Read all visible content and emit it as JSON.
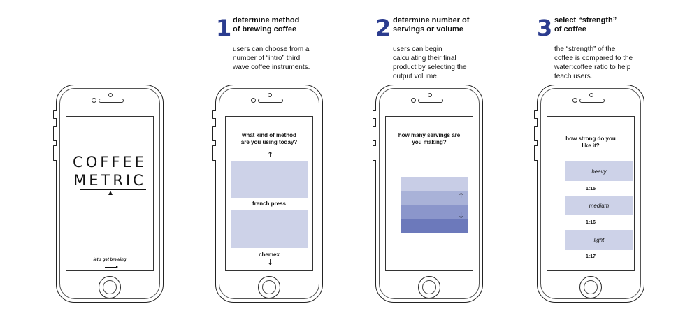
{
  "colors": {
    "accent": "#2b3c8f",
    "panel": "#cdd2e8",
    "vol1": "#c8cde6",
    "vol2": "#a9b2d8",
    "vol3": "#8b96cb",
    "vol4": "#6c79bb"
  },
  "steps": [
    {
      "number": "1",
      "title": "determine method\nof brewing coffee",
      "description": "users can choose from a\nnumber of “intro” third\nwave coffee instruments."
    },
    {
      "number": "2",
      "title": "determine number of\nservings or volume",
      "description": "users can begin\ncalculating their final\nproduct by selecting the\noutput volume."
    },
    {
      "number": "3",
      "title": "select “strength”\nof coffee",
      "description": "the “strength” of the\ncoffee is compared to the\nwater:coffee ratio to help\nteach users."
    }
  ],
  "splash": {
    "brand_line1": "COFFEE",
    "brand_line2": "METRIC",
    "cta": "let's get brewing"
  },
  "method_screen": {
    "question": "what kind of method\nare you using today?",
    "options": [
      "french press",
      "chemex"
    ]
  },
  "servings_screen": {
    "question": "how many servings are\nyou making?"
  },
  "strength_screen": {
    "question": "how strong do you\nlike it?",
    "options": [
      {
        "label": "heavy",
        "ratio": "1:15"
      },
      {
        "label": "medium",
        "ratio": "1:16"
      },
      {
        "label": "light",
        "ratio": "1:17"
      }
    ]
  },
  "icons": {
    "up": "↑",
    "down": "↓"
  }
}
